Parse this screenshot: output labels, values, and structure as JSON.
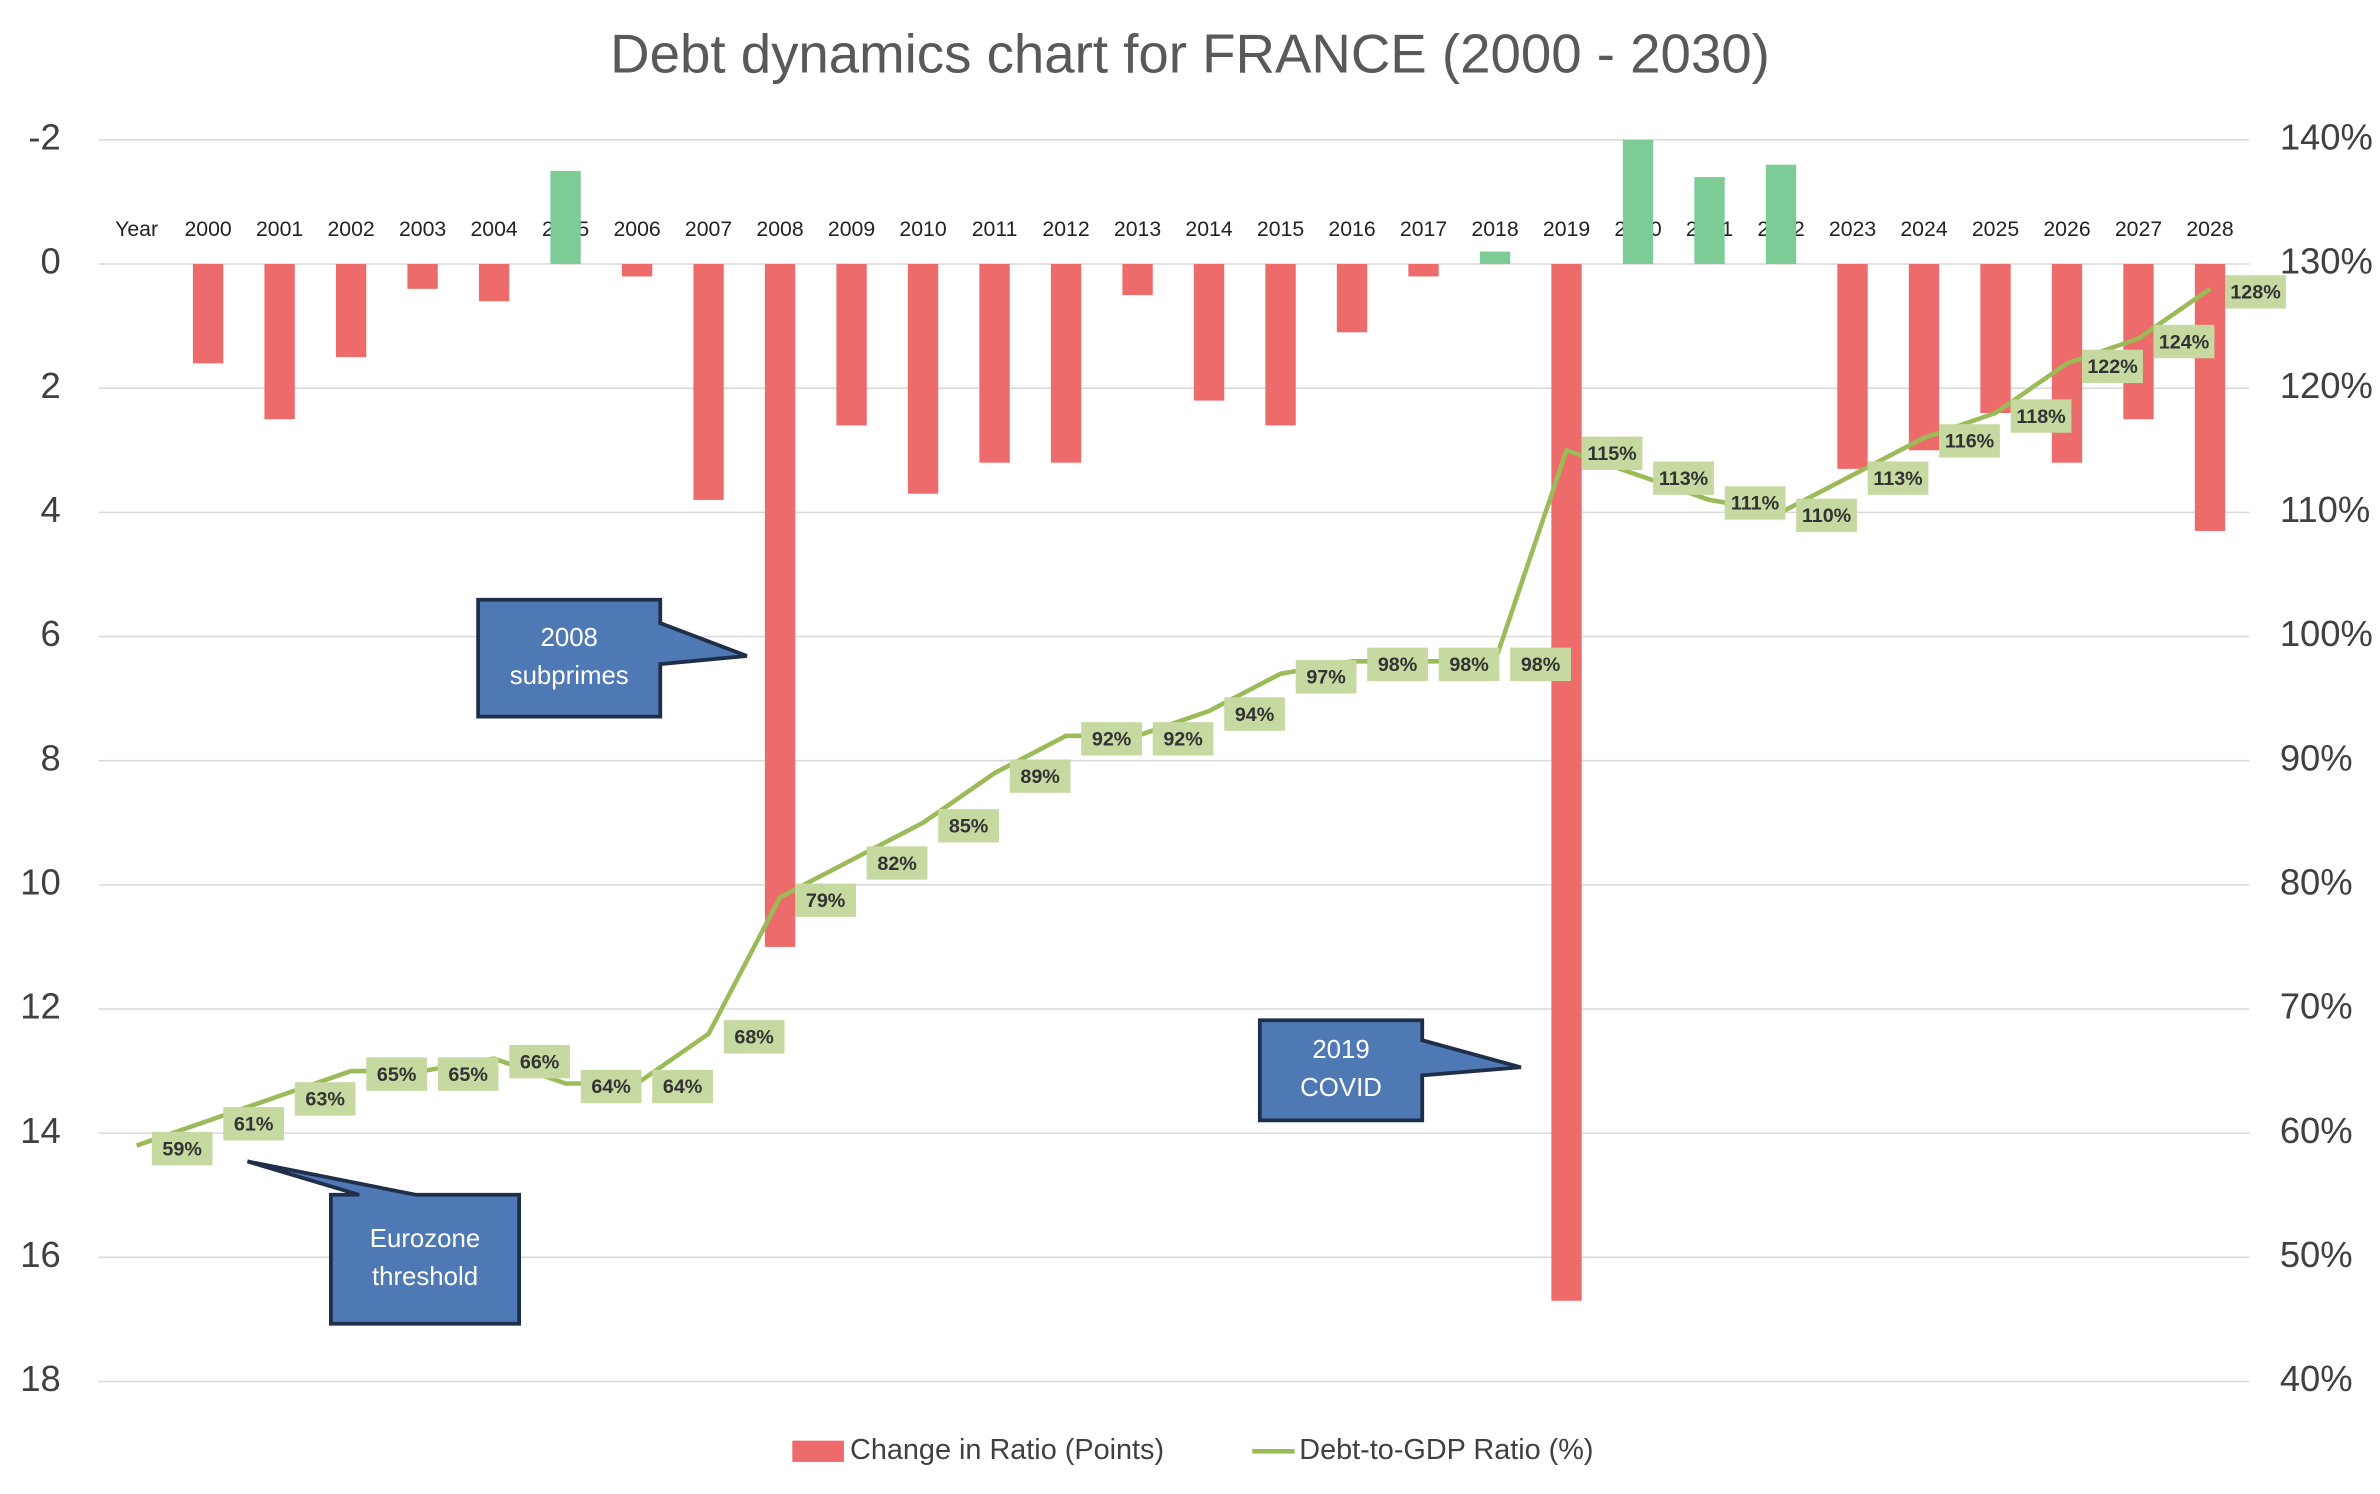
{
  "chart_data": {
    "type": "combo",
    "title": "Debt dynamics chart for FRANCE (2000 - 2030)",
    "categories": [
      "Year",
      "2000",
      "2001",
      "2002",
      "2003",
      "2004",
      "2005",
      "2006",
      "2007",
      "2008",
      "2009",
      "2010",
      "2011",
      "2012",
      "2013",
      "2014",
      "2015",
      "2016",
      "2017",
      "2018",
      "2019",
      "2020",
      "2021",
      "2022",
      "2023",
      "2024",
      "2025",
      "2026",
      "2027",
      "2028"
    ],
    "series": [
      {
        "name": "Change in Ratio (Points)",
        "type": "bar",
        "color": "#ee6b6b",
        "negative_color": "#7dcc96",
        "values": [
          null,
          1.6,
          2.5,
          1.5,
          0.4,
          0.6,
          -1.5,
          0.2,
          3.8,
          11,
          2.6,
          3.7,
          3.2,
          3.2,
          0.5,
          2.2,
          2.6,
          1.1,
          0.2,
          -0.2,
          16.7,
          -2,
          -1.4,
          -1.6,
          3.3,
          3.0,
          2.4,
          3.2,
          2.5,
          4.3
        ]
      },
      {
        "name": "Debt-to-GDP Ratio (%)",
        "type": "line",
        "axis": "y2",
        "color": "#9bbb59",
        "label_color": "#c5d9a0",
        "values": [
          59,
          61,
          63,
          65,
          65,
          66,
          64,
          64,
          68,
          79,
          82,
          85,
          89,
          92,
          92,
          94,
          97,
          98,
          98,
          98,
          115,
          113,
          111,
          110,
          113,
          116,
          118,
          122,
          124,
          128
        ],
        "value_labels": [
          "59%",
          "61%",
          "63%",
          "65%",
          "65%",
          "66%",
          "64%",
          "64%",
          "68%",
          "79%",
          "82%",
          "85%",
          "89%",
          "92%",
          "92%",
          "94%",
          "97%",
          "98%",
          "98%",
          "98%",
          "115%",
          "113%",
          "111%",
          "110%",
          "113%",
          "116%",
          "118%",
          "122%",
          "124%",
          "128%"
        ]
      }
    ],
    "ylim": [
      -2,
      18
    ],
    "y_inverted": true,
    "yticks": [
      -2,
      0,
      2,
      4,
      6,
      8,
      10,
      12,
      14,
      16,
      18
    ],
    "y2lim": [
      40,
      140
    ],
    "y2ticks": [
      {
        "value": 40,
        "label": "40%"
      },
      {
        "value": 50,
        "label": "50%"
      },
      {
        "value": 60,
        "label": "60%"
      },
      {
        "value": 70,
        "label": "70%"
      },
      {
        "value": 80,
        "label": "80%"
      },
      {
        "value": 90,
        "label": "90%"
      },
      {
        "value": 100,
        "label": "100%"
      },
      {
        "value": 110,
        "label": "110%"
      },
      {
        "value": 120,
        "label": "120%"
      },
      {
        "value": 130,
        "label": "130%"
      },
      {
        "value": 140,
        "label": "140%"
      }
    ],
    "grid": true,
    "legend": "bottom",
    "annotations": [
      {
        "lines": [
          "2008",
          "subprimes"
        ]
      },
      {
        "lines": [
          "2019",
          "COVID"
        ]
      },
      {
        "lines": [
          "Eurozone",
          "threshold"
        ]
      }
    ]
  }
}
